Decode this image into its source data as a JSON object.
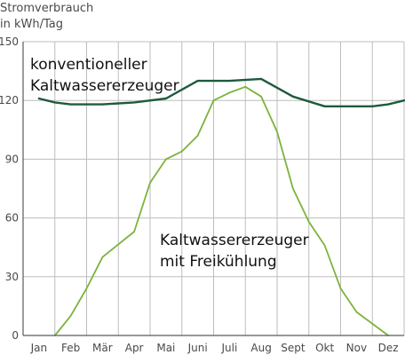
{
  "chart_data": {
    "type": "line",
    "ylabel_lines": [
      "Stromverbrauch",
      "in kWh/Tag"
    ],
    "xlabel": "",
    "x": [
      "Jan",
      "Feb",
      "Mär",
      "Apr",
      "Mai",
      "Juni",
      "Juli",
      "Aug",
      "Sept",
      "Okt",
      "Nov",
      "Dez"
    ],
    "ylim": [
      0,
      150
    ],
    "yticks": [
      0,
      30,
      60,
      90,
      120,
      150
    ],
    "grid": true,
    "series": [
      {
        "name": "konventioneller Kaltwassererzeuger",
        "label_lines": [
          "konventioneller",
          "Kaltwassererzeuger"
        ],
        "color": "#1e5a3c",
        "x": [
          0,
          0.5,
          1,
          2,
          3,
          4,
          5,
          6,
          7,
          8,
          9,
          10,
          10.5,
          11,
          11.5
        ],
        "y": [
          121,
          119,
          118,
          118,
          119,
          121,
          130,
          130,
          131,
          122,
          117,
          117,
          117,
          118,
          120
        ]
      },
      {
        "name": "Kaltwassererzeuger mit Freikühlung",
        "label_lines": [
          "Kaltwassererzeuger",
          "mit Freikühlung"
        ],
        "color": "#7db33c",
        "x": [
          0.5,
          1,
          1.5,
          2,
          3,
          3.5,
          4,
          4.5,
          5,
          5.5,
          6,
          6.5,
          7,
          7.5,
          8,
          8.5,
          9,
          9.5,
          10,
          11
        ],
        "y": [
          0,
          10,
          24,
          40,
          53,
          78,
          90,
          94,
          102,
          120,
          124,
          127,
          122,
          104,
          75,
          58,
          46,
          24,
          12,
          0
        ]
      }
    ]
  }
}
